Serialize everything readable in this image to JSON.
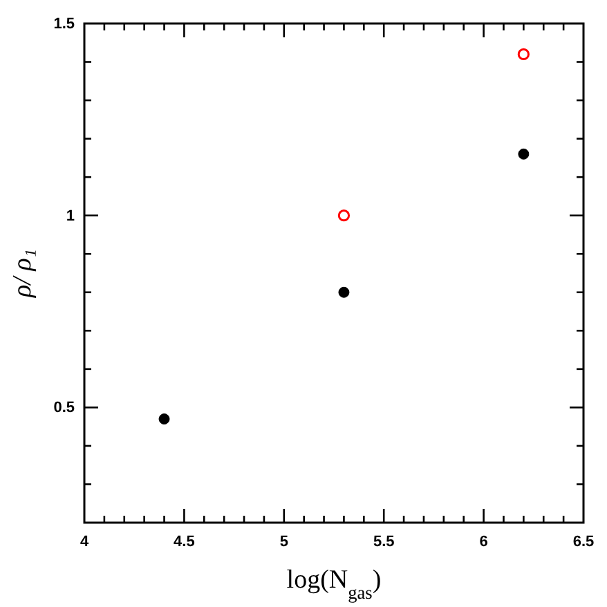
{
  "chart_data": {
    "type": "scatter",
    "xlabel": "log(N$_{gas}$)",
    "ylabel": "ρ/ ρ₁",
    "xlim": [
      4,
      6.5
    ],
    "ylim": [
      0.2,
      1.5
    ],
    "xticks": [
      4,
      {
        "value": 4.1,
        "label": null
      },
      {
        "value": 4.2,
        "label": null
      },
      {
        "value": 4.3,
        "label": null
      },
      {
        "value": 4.4,
        "label": null
      },
      4.5,
      {
        "value": 4.6,
        "label": null
      },
      {
        "value": 4.7,
        "label": null
      },
      {
        "value": 4.8,
        "label": null
      },
      {
        "value": 4.9,
        "label": null
      },
      5,
      {
        "value": 5.1,
        "label": null
      },
      {
        "value": 5.2,
        "label": null
      },
      {
        "value": 5.3,
        "label": null
      },
      {
        "value": 5.4,
        "label": null
      },
      5.5,
      {
        "value": 5.6,
        "label": null
      },
      {
        "value": 5.7,
        "label": null
      },
      {
        "value": 5.8,
        "label": null
      },
      {
        "value": 5.9,
        "label": null
      },
      6,
      {
        "value": 6.1,
        "label": null
      },
      {
        "value": 6.2,
        "label": null
      },
      {
        "value": 6.3,
        "label": null
      },
      {
        "value": 6.4,
        "label": null
      },
      6.5
    ],
    "yticks": [
      {
        "value": 0.3,
        "label": null
      },
      {
        "value": 0.4,
        "label": null
      },
      0.5,
      {
        "value": 0.6,
        "label": null
      },
      {
        "value": 0.7,
        "label": null
      },
      {
        "value": 0.8,
        "label": null
      },
      {
        "value": 0.9,
        "label": null
      },
      1,
      {
        "value": 1.1,
        "label": null
      },
      {
        "value": 1.2,
        "label": null
      },
      {
        "value": 1.3,
        "label": null
      },
      {
        "value": 1.4,
        "label": null
      },
      1.5
    ],
    "marker": "circle",
    "series": [
      {
        "color": "#000000",
        "x": [
          4.4,
          5.3,
          6.2
        ],
        "values": [
          0.47,
          0.8,
          1.16
        ]
      },
      {
        "color": "#ff0000",
        "x": [
          5.3,
          6.2
        ],
        "values": [
          1.0,
          1.42
        ]
      }
    ]
  }
}
